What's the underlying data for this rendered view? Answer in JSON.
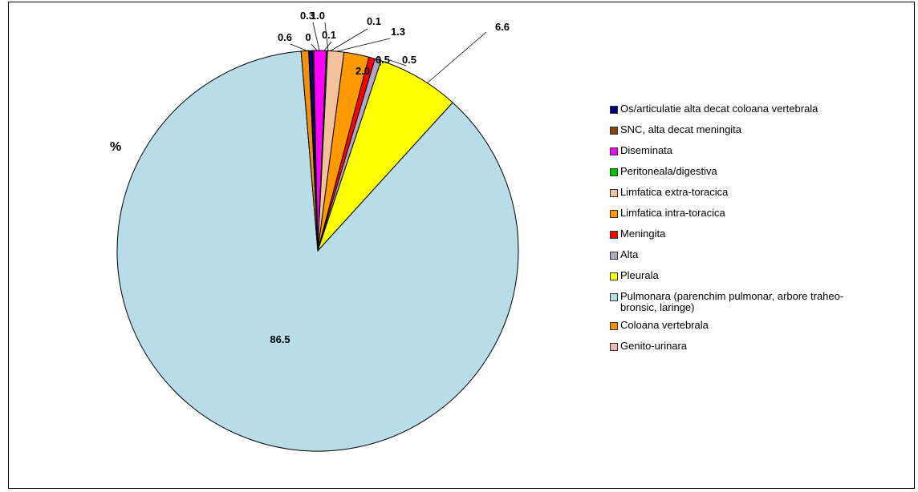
{
  "chart_data": {
    "type": "pie",
    "title": "%",
    "slices": [
      {
        "label": "Os/articulatie alta decat coloana vertebrala",
        "value": 0.3,
        "data_label": "0.3",
        "color": "#000080"
      },
      {
        "label": "SNC, alta decat meningita",
        "value": 0.1,
        "data_label": "0.1",
        "color": "#8B4513"
      },
      {
        "label": "Diseminata",
        "value": 1.0,
        "data_label": "1.0",
        "color": "#FF00FF"
      },
      {
        "label": "Peritoneala/digestiva",
        "value": 0.1,
        "data_label": "0.1",
        "color": "#00C000"
      },
      {
        "label": "Limfatica extra-toracica",
        "value": 1.3,
        "data_label": "1.3",
        "color": "#F4C29A"
      },
      {
        "label": "Limfatica intra-toracica",
        "value": 2.0,
        "data_label": "2.0",
        "color": "#FF9900"
      },
      {
        "label": "Meningita",
        "value": 0.5,
        "data_label": "0.5",
        "color": "#FF0000"
      },
      {
        "label": "Alta",
        "value": 0.5,
        "data_label": "0.5",
        "color": "#B0A8C8"
      },
      {
        "label": "Pleurala",
        "value": 6.6,
        "data_label": "6.6",
        "color": "#FFFF00"
      },
      {
        "label": "Pulmonara (parenchim pulmonar, arbore traheo-\nbronsic, laringe)",
        "value": 86.5,
        "data_label": "86.5",
        "color": "#B8DDE8"
      },
      {
        "label": "Coloana vertebrala",
        "value": 0.6,
        "data_label": "0.6",
        "color": "#F0900F"
      },
      {
        "label": "Genito-urinara",
        "value": 0.0,
        "data_label": "0",
        "color": "#F2B8B8"
      }
    ],
    "legend_position": "right"
  }
}
